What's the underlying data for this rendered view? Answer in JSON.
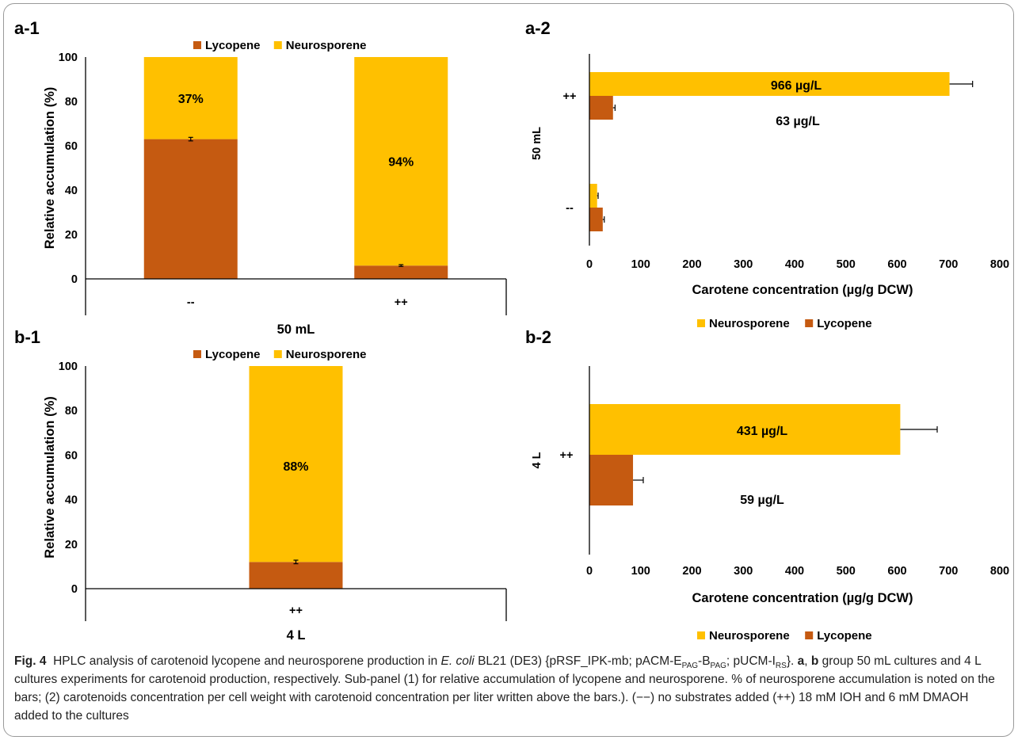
{
  "colors": {
    "lycopene": "#c55a11",
    "neurosporene": "#ffc000",
    "axis": "#000000"
  },
  "chart_data": [
    {
      "id": "a1",
      "panel_label": "a-1",
      "type": "bar",
      "stacked": true,
      "categories": [
        "--",
        "++"
      ],
      "group_label": "50 mL",
      "ylabel": "Relative accumulation (%)",
      "ylim": [
        0,
        100
      ],
      "yticks": [
        "0",
        "20",
        "40",
        "60",
        "80",
        "100"
      ],
      "ytick_values": [
        0,
        20,
        40,
        60,
        80,
        100
      ],
      "legend": [
        "Lycopene",
        "Neurosporene"
      ],
      "legend_position": "top",
      "series": [
        {
          "name": "Lycopene",
          "values": [
            63,
            6
          ],
          "error": [
            0.8,
            0.4
          ]
        },
        {
          "name": "Neurosporene",
          "values": [
            37,
            94
          ]
        }
      ],
      "labels": [
        "37%",
        "94%"
      ]
    },
    {
      "id": "a2",
      "panel_label": "a-2",
      "type": "bar",
      "orientation": "horizontal",
      "categories": [
        "--",
        "++"
      ],
      "group_label": "50 mL",
      "xlabel": "Carotene concentration (µg/g DCW)",
      "xlim": [
        0,
        800
      ],
      "xticks": [
        "0",
        "100",
        "200",
        "300",
        "400",
        "500",
        "600",
        "700",
        "800"
      ],
      "xtick_values": [
        0,
        100,
        200,
        300,
        400,
        500,
        600,
        700,
        800
      ],
      "legend": [
        "Neurosporene",
        "Lycopene"
      ],
      "legend_position": "bottom",
      "series": [
        {
          "name": "Neurosporene",
          "values": [
            15,
            702
          ],
          "error": [
            2,
            45
          ]
        },
        {
          "name": "Lycopene",
          "values": [
            26,
            46
          ],
          "error": [
            3,
            4
          ]
        }
      ],
      "labels": [
        "966 µg/L",
        "63 µg/L"
      ]
    },
    {
      "id": "b1",
      "panel_label": "b-1",
      "type": "bar",
      "stacked": true,
      "categories": [
        "++"
      ],
      "group_label": "4 L",
      "ylabel": "Relative accumulation (%)",
      "ylim": [
        0,
        100
      ],
      "yticks": [
        "0",
        "20",
        "40",
        "60",
        "80",
        "100"
      ],
      "ytick_values": [
        0,
        20,
        40,
        60,
        80,
        100
      ],
      "legend": [
        "Lycopene",
        "Neurosporene"
      ],
      "legend_position": "top",
      "series": [
        {
          "name": "Lycopene",
          "values": [
            12
          ],
          "error": [
            0.8
          ]
        },
        {
          "name": "Neurosporene",
          "values": [
            88
          ]
        }
      ],
      "labels": [
        "88%"
      ]
    },
    {
      "id": "b2",
      "panel_label": "b-2",
      "type": "bar",
      "orientation": "horizontal",
      "categories": [
        "++"
      ],
      "group_label": "4 L",
      "xlabel": "Carotene concentration (µg/g DCW)",
      "xlim": [
        0,
        800
      ],
      "xticks": [
        "0",
        "100",
        "200",
        "300",
        "400",
        "500",
        "600",
        "700",
        "800"
      ],
      "xtick_values": [
        0,
        100,
        200,
        300,
        400,
        500,
        600,
        700,
        800
      ],
      "legend": [
        "Neurosporene",
        "Lycopene"
      ],
      "legend_position": "bottom",
      "series": [
        {
          "name": "Neurosporene",
          "values": [
            606
          ],
          "error": [
            72
          ]
        },
        {
          "name": "Lycopene",
          "values": [
            85
          ],
          "error": [
            20
          ]
        }
      ],
      "labels": [
        "431 µg/L",
        "59 µg/L"
      ]
    }
  ],
  "caption": {
    "fig": "Fig. 4",
    "t1": "HPLC analysis of carotenoid lycopene and neurosporene production in ",
    "ecoli": "E. coli",
    "t2": " BL21 (DE3) {pRSF_IPK-mb; pACM-E",
    "s1": "PAG",
    "t3": "-B",
    "s2": "PAG",
    "t4": "; pUCM-I",
    "s3": "RS",
    "t5": "}. ",
    "a": "a",
    "comma": ", ",
    "b": "b",
    "t6": " group 50 mL cultures and 4 L cultures experiments for carotenoid production, respectively. Sub-panel (1) for relative accumulation of lycopene and neurosporene. % of neurosporene accumulation is noted on the bars; (2) carotenoids concentration per cell weight with carotenoid concentration per liter written above the bars.). (−−) no substrates added (++) 18 mM IOH and 6 mM DMAOH added to the cultures"
  }
}
